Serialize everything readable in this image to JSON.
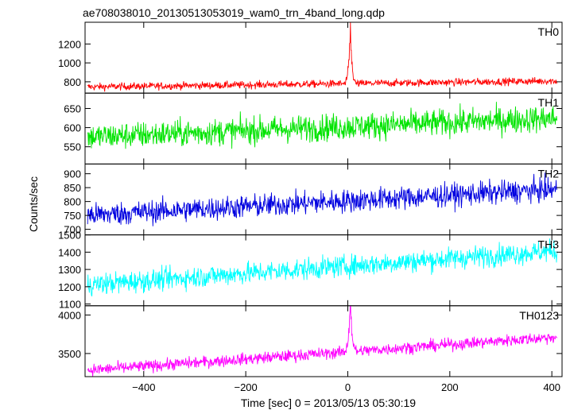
{
  "title": "ae708038010_20130513053019_wam0_trn_4band_long.qdp",
  "ylabel": "Counts/sec",
  "xlabel": "Time [sec] 0 = 2013/05/13 05:30:19",
  "chart_data": [
    {
      "type": "line",
      "name": "TH0",
      "color": "#ff0000",
      "x_range": [
        -515,
        420
      ],
      "ylim": [
        680,
        1430
      ],
      "yticks": [
        800,
        1000,
        1200
      ],
      "xticks": [
        -400,
        -200,
        0,
        200,
        400
      ],
      "baseline_start": 745,
      "baseline_end": 810,
      "noise": 28,
      "peak_time": 5,
      "peak_value": 1430,
      "peak_width": 3
    },
    {
      "type": "line",
      "name": "TH1",
      "color": "#00e400",
      "x_range": [
        -515,
        420
      ],
      "ylim": [
        505,
        690
      ],
      "yticks": [
        550,
        600,
        650
      ],
      "xticks": [
        -400,
        -200,
        0,
        200,
        400
      ],
      "baseline_start": 575,
      "baseline_end": 625,
      "noise": 25,
      "peak_time": null,
      "peak_value": null,
      "peak_width": 0
    },
    {
      "type": "line",
      "name": "TH2",
      "color": "#0000e0",
      "x_range": [
        -515,
        420
      ],
      "ylim": [
        680,
        935
      ],
      "yticks": [
        700,
        750,
        800,
        850,
        900
      ],
      "xticks": [
        -400,
        -200,
        0,
        200,
        400
      ],
      "baseline_start": 750,
      "baseline_end": 845,
      "noise": 30,
      "peak_time": null,
      "peak_value": null,
      "peak_width": 0
    },
    {
      "type": "line",
      "name": "TH3",
      "color": "#00ffff",
      "x_range": [
        -515,
        420
      ],
      "ylim": [
        1090,
        1500
      ],
      "yticks": [
        1100,
        1200,
        1300,
        1400,
        1500
      ],
      "xticks": [
        -400,
        -200,
        0,
        200,
        400
      ],
      "baseline_start": 1210,
      "baseline_end": 1410,
      "noise": 45,
      "peak_time": null,
      "peak_value": null,
      "peak_width": 0
    },
    {
      "type": "line",
      "name": "TH0123",
      "color": "#ff00ff",
      "x_range": [
        -515,
        420
      ],
      "ylim": [
        3200,
        4120
      ],
      "yticks": [
        3500,
        4000
      ],
      "xticks": [
        -400,
        -200,
        0,
        200,
        400
      ],
      "baseline_start": 3280,
      "baseline_end": 3720,
      "noise": 55,
      "peak_time": 5,
      "peak_value": 4100,
      "peak_width": 3
    }
  ]
}
